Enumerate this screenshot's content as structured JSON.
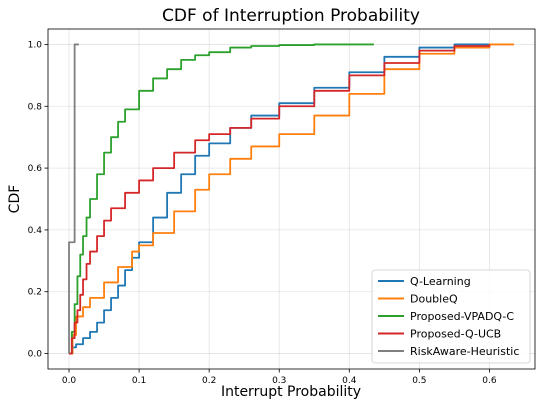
{
  "chart_data": {
    "type": "line",
    "step": true,
    "title": "CDF of Interruption Probability",
    "xlabel": "Interrupt Probability",
    "ylabel": "CDF",
    "xlim": [
      -0.03,
      0.665
    ],
    "ylim": [
      -0.05,
      1.05
    ],
    "xticks": [
      0.0,
      0.1,
      0.2,
      0.3,
      0.4,
      0.5,
      0.6
    ],
    "xtick_labels": [
      "0.0",
      "0.1",
      "0.2",
      "0.3",
      "0.4",
      "0.5",
      "0.6"
    ],
    "yticks": [
      0.0,
      0.2,
      0.4,
      0.6,
      0.8,
      1.0
    ],
    "ytick_labels": [
      "0.0",
      "0.2",
      "0.4",
      "0.6",
      "0.8",
      "1.0"
    ],
    "grid": true,
    "legend_position": "lower-right",
    "series": [
      {
        "name": "Q-Learning",
        "color": "#1f77b4",
        "x": [
          0.0,
          0.005,
          0.01,
          0.02,
          0.03,
          0.04,
          0.05,
          0.06,
          0.07,
          0.08,
          0.09,
          0.1,
          0.12,
          0.14,
          0.16,
          0.18,
          0.2,
          0.23,
          0.26,
          0.3,
          0.35,
          0.4,
          0.45,
          0.5,
          0.55,
          0.6
        ],
        "y": [
          0.0,
          0.02,
          0.03,
          0.05,
          0.07,
          0.1,
          0.14,
          0.18,
          0.22,
          0.27,
          0.31,
          0.36,
          0.44,
          0.52,
          0.58,
          0.64,
          0.68,
          0.73,
          0.77,
          0.81,
          0.86,
          0.91,
          0.96,
          0.99,
          1.0,
          1.0
        ]
      },
      {
        "name": "DoubleQ",
        "color": "#ff7f0e",
        "x": [
          0.0,
          0.005,
          0.01,
          0.02,
          0.03,
          0.05,
          0.07,
          0.09,
          0.1,
          0.12,
          0.15,
          0.18,
          0.2,
          0.23,
          0.26,
          0.3,
          0.35,
          0.4,
          0.45,
          0.5,
          0.55,
          0.6,
          0.635
        ],
        "y": [
          0.0,
          0.06,
          0.12,
          0.15,
          0.18,
          0.23,
          0.28,
          0.33,
          0.35,
          0.39,
          0.46,
          0.53,
          0.58,
          0.63,
          0.67,
          0.71,
          0.77,
          0.84,
          0.92,
          0.97,
          0.99,
          1.0,
          1.0
        ]
      },
      {
        "name": "Proposed-VPADQ-C",
        "color": "#2ca02c",
        "x": [
          0.0,
          0.004,
          0.008,
          0.012,
          0.016,
          0.02,
          0.025,
          0.03,
          0.04,
          0.05,
          0.06,
          0.07,
          0.08,
          0.1,
          0.12,
          0.14,
          0.16,
          0.18,
          0.2,
          0.23,
          0.26,
          0.3,
          0.35,
          0.4,
          0.435
        ],
        "y": [
          0.0,
          0.07,
          0.16,
          0.25,
          0.32,
          0.38,
          0.44,
          0.5,
          0.58,
          0.65,
          0.7,
          0.75,
          0.79,
          0.85,
          0.89,
          0.92,
          0.95,
          0.965,
          0.975,
          0.99,
          0.995,
          0.998,
          1.0,
          1.0,
          1.0
        ]
      },
      {
        "name": "Proposed-Q-UCB",
        "color": "#d62728",
        "x": [
          0.0,
          0.004,
          0.008,
          0.012,
          0.016,
          0.02,
          0.025,
          0.03,
          0.04,
          0.05,
          0.06,
          0.08,
          0.1,
          0.12,
          0.15,
          0.18,
          0.2,
          0.23,
          0.26,
          0.3,
          0.35,
          0.4,
          0.45,
          0.5,
          0.55,
          0.6
        ],
        "y": [
          0.0,
          0.05,
          0.1,
          0.14,
          0.19,
          0.24,
          0.29,
          0.33,
          0.38,
          0.43,
          0.47,
          0.52,
          0.56,
          0.6,
          0.65,
          0.69,
          0.71,
          0.73,
          0.76,
          0.8,
          0.85,
          0.9,
          0.94,
          0.98,
          0.995,
          1.0
        ]
      },
      {
        "name": "RiskAware-Heuristic",
        "color": "#7f7f7f",
        "x": [
          0.0,
          0.0,
          0.008,
          0.008,
          0.014
        ],
        "y": [
          0.0,
          0.36,
          0.36,
          1.0,
          1.0
        ]
      }
    ]
  }
}
